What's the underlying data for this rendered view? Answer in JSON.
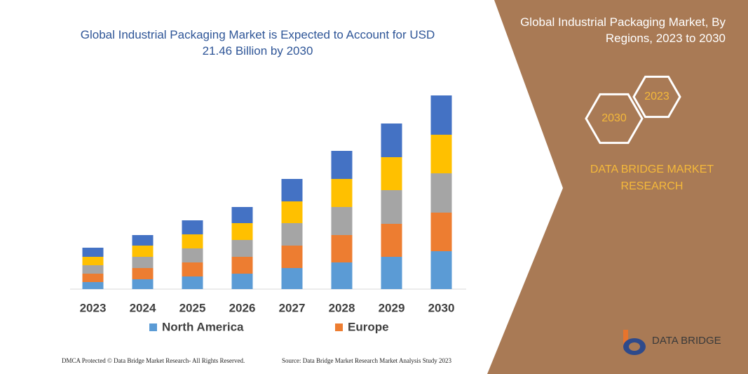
{
  "chart_data": {
    "type": "stacked-bar",
    "title": "Global Industrial Packaging Market is Expected to Account for USD 21.46 Billion by 2030",
    "categories": [
      "2023",
      "2024",
      "2025",
      "2026",
      "2027",
      "2028",
      "2029",
      "2030"
    ],
    "series": [
      {
        "name": "North America",
        "color": "#5b9bd5",
        "values": [
          10,
          14,
          18,
          22,
          30,
          38,
          46,
          54
        ]
      },
      {
        "name": "Europe",
        "color": "#ed7d31",
        "values": [
          12,
          16,
          20,
          24,
          32,
          39,
          47,
          55
        ]
      },
      {
        "color": "#a5a5a5",
        "values": [
          12,
          16,
          20,
          24,
          32,
          40,
          48,
          56
        ]
      },
      {
        "color": "#ffc000",
        "values": [
          12,
          16,
          20,
          24,
          31,
          40,
          47,
          55
        ]
      },
      {
        "color": "#4472c4",
        "values": [
          13,
          15,
          20,
          23,
          32,
          40,
          48,
          56
        ]
      }
    ],
    "ylim": [
      0,
      280
    ]
  },
  "side_panel": {
    "title": "Global Industrial Packaging Market, By Regions, 2023 to 2030",
    "hexagons": [
      "2023",
      "2030"
    ],
    "brand": "DATA BRIDGE MARKET RESEARCH"
  },
  "logo": "DATA BRIDGE",
  "footer": {
    "left": "DMCA Protected © Data Bridge Market Research- All Rights Reserved.",
    "right": "Source: Data Bridge Market Research Market Analysis Study 2023"
  }
}
